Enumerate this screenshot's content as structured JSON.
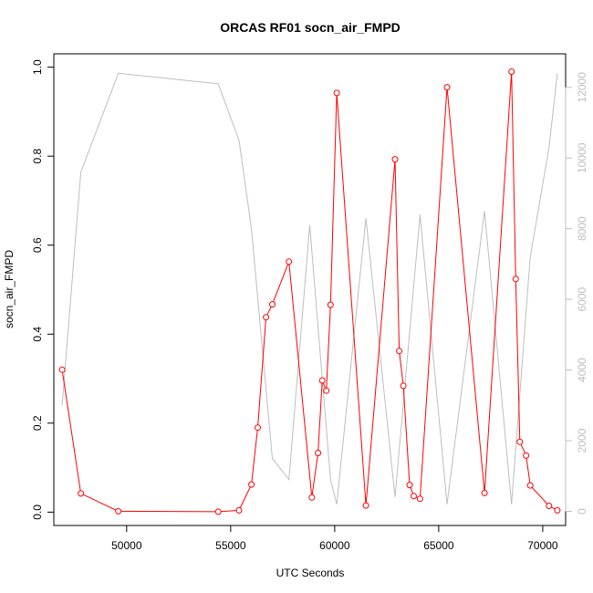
{
  "chart_data": {
    "type": "line",
    "title": "ORCAS RF01 socn_air_FMPD",
    "xlabel": "UTC Seconds",
    "ylabel": "socn_air_FMPD",
    "xlim": [
      46500,
      71100
    ],
    "ylim": [
      -0.03,
      1.03
    ],
    "y2lim": [
      -400,
      12950
    ],
    "x_ticks": [
      "50000",
      "55000",
      "60000",
      "65000",
      "70000"
    ],
    "y_ticks": [
      "0.0",
      "0.2",
      "0.4",
      "0.6",
      "0.8",
      "1.0"
    ],
    "y2_ticks": [
      "0",
      "2000",
      "4000",
      "6000",
      "8000",
      "10000",
      "12000"
    ],
    "grid": false,
    "series": [
      {
        "axis": "left",
        "color": "#ff0000",
        "marker": "open-circle",
        "x": [
          46900,
          47800,
          49600,
          54400,
          55400,
          56000,
          56300,
          56700,
          57000,
          57800,
          58900,
          59200,
          59400,
          59600,
          59800,
          60100,
          61500,
          62900,
          63100,
          63300,
          63600,
          63800,
          64100,
          65400,
          67200,
          68500,
          68700,
          68900,
          69200,
          69400,
          70300,
          70700
        ],
        "values": [
          0.32,
          0.042,
          0.002,
          0.001,
          0.004,
          0.062,
          0.19,
          0.438,
          0.467,
          0.563,
          0.033,
          0.133,
          0.296,
          0.273,
          0.466,
          0.942,
          0.015,
          0.793,
          0.362,
          0.284,
          0.061,
          0.036,
          0.03,
          0.955,
          0.043,
          0.99,
          0.524,
          0.158,
          0.127,
          0.06,
          0.014,
          0.004
        ]
      },
      {
        "axis": "right",
        "color": "#bebebe",
        "marker": "none",
        "x": [
          46900,
          47800,
          49600,
          54400,
          55400,
          56000,
          57000,
          57800,
          58800,
          59800,
          60100,
          61500,
          62900,
          64100,
          65400,
          67200,
          68500,
          69400,
          70300,
          70700
        ],
        "values": [
          3000,
          9600,
          12400,
          12100,
          10500,
          8000,
          1500,
          900,
          8100,
          900,
          200,
          8300,
          400,
          8400,
          200,
          8500,
          200,
          7200,
          10300,
          12400
        ]
      }
    ]
  }
}
